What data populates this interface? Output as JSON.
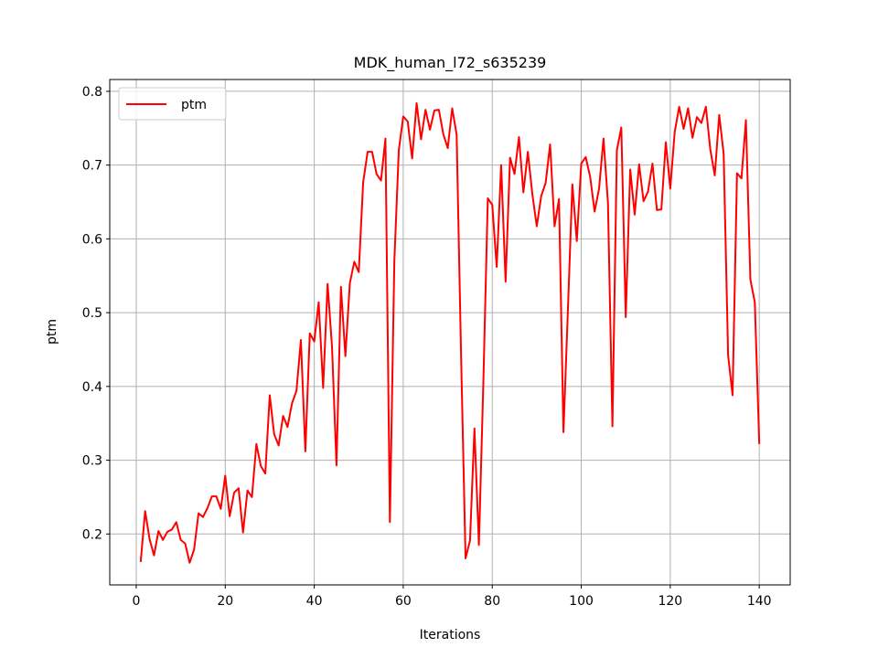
{
  "chart_data": {
    "type": "line",
    "title": "MDK_human_l72_s635239",
    "xlabel": "Iterations",
    "ylabel": "ptm",
    "xlim": [
      -5.95,
      146.95
    ],
    "ylim": [
      0.131,
      0.816
    ],
    "xticks": [
      0,
      20,
      40,
      60,
      80,
      100,
      120,
      140
    ],
    "yticks": [
      0.2,
      0.3,
      0.4,
      0.5,
      0.6,
      0.7,
      0.8
    ],
    "grid": true,
    "legend_position": "top-left",
    "series": [
      {
        "name": "ptm",
        "color": "#ff0000",
        "x": [
          1,
          2,
          3,
          4,
          5,
          6,
          7,
          8,
          9,
          10,
          11,
          12,
          13,
          14,
          15,
          16,
          17,
          18,
          19,
          20,
          21,
          22,
          23,
          24,
          25,
          26,
          27,
          28,
          29,
          30,
          31,
          32,
          33,
          34,
          35,
          36,
          37,
          38,
          39,
          40,
          41,
          42,
          43,
          44,
          45,
          46,
          47,
          48,
          49,
          50,
          51,
          52,
          53,
          54,
          55,
          56,
          57,
          58,
          59,
          60,
          61,
          62,
          63,
          64,
          65,
          66,
          67,
          68,
          69,
          70,
          71,
          72,
          73,
          74,
          75,
          76,
          77,
          78,
          79,
          80,
          81,
          82,
          83,
          84,
          85,
          86,
          87,
          88,
          89,
          90,
          91,
          92,
          93,
          94,
          95,
          96,
          97,
          98,
          99,
          100,
          101,
          102,
          103,
          104,
          105,
          106,
          107,
          108,
          109,
          110,
          111,
          112,
          113,
          114,
          115,
          116,
          117,
          118,
          119,
          120,
          121,
          122,
          123,
          124,
          125,
          126,
          127,
          128,
          129,
          130,
          131,
          132,
          133,
          134,
          135,
          136,
          137,
          138,
          139,
          140
        ],
        "values": [
          0.162,
          0.231,
          0.193,
          0.171,
          0.204,
          0.192,
          0.203,
          0.206,
          0.216,
          0.192,
          0.187,
          0.161,
          0.179,
          0.228,
          0.223,
          0.235,
          0.251,
          0.251,
          0.234,
          0.279,
          0.224,
          0.256,
          0.262,
          0.202,
          0.259,
          0.25,
          0.322,
          0.292,
          0.282,
          0.388,
          0.335,
          0.32,
          0.36,
          0.345,
          0.377,
          0.394,
          0.463,
          0.312,
          0.472,
          0.461,
          0.514,
          0.398,
          0.539,
          0.453,
          0.293,
          0.535,
          0.441,
          0.54,
          0.569,
          0.555,
          0.677,
          0.718,
          0.718,
          0.688,
          0.679,
          0.736,
          0.216,
          0.57,
          0.72,
          0.766,
          0.759,
          0.709,
          0.784,
          0.735,
          0.775,
          0.748,
          0.774,
          0.775,
          0.742,
          0.723,
          0.777,
          0.741,
          0.441,
          0.167,
          0.191,
          0.343,
          0.185,
          0.405,
          0.655,
          0.646,
          0.562,
          0.7,
          0.542,
          0.71,
          0.688,
          0.738,
          0.663,
          0.718,
          0.661,
          0.617,
          0.658,
          0.676,
          0.728,
          0.617,
          0.654,
          0.338,
          0.504,
          0.674,
          0.597,
          0.702,
          0.711,
          0.684,
          0.637,
          0.668,
          0.736,
          0.649,
          0.346,
          0.72,
          0.751,
          0.494,
          0.694,
          0.633,
          0.701,
          0.651,
          0.664,
          0.702,
          0.639,
          0.64,
          0.731,
          0.668,
          0.745,
          0.779,
          0.749,
          0.777,
          0.737,
          0.765,
          0.757,
          0.779,
          0.721,
          0.686,
          0.768,
          0.715,
          0.442,
          0.388,
          0.689,
          0.682,
          0.761,
          0.545,
          0.514,
          0.322
        ]
      }
    ]
  }
}
